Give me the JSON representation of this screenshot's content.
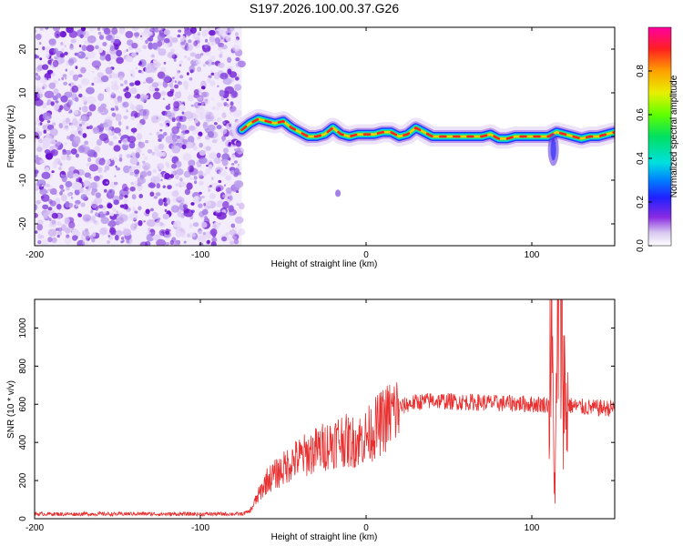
{
  "figure": {
    "title": "S197.2026.100.00.37.G26"
  },
  "chart_data": [
    {
      "type": "heatmap",
      "panel": "spectrogram",
      "xlabel": "Height of straight line (km)",
      "ylabel": "Frequency (Hz)",
      "xlim": [
        -200,
        150
      ],
      "ylim": [
        -25,
        25
      ],
      "xticks": [
        -200,
        -100,
        0,
        100
      ],
      "yticks": [
        -20,
        -10,
        0,
        10,
        20
      ],
      "colorbar": {
        "label": "Normalized spectral amplitude",
        "range": [
          0,
          1
        ],
        "ticks": [
          0.0,
          0.2,
          0.4,
          0.6,
          0.8
        ]
      },
      "noise_region_x": [
        -200,
        -75
      ],
      "signal_ridge": {
        "x": [
          -75,
          -70,
          -65,
          -60,
          -55,
          -50,
          -45,
          -40,
          -35,
          -30,
          -25,
          -20,
          -15,
          -10,
          -5,
          0,
          5,
          10,
          15,
          20,
          25,
          30,
          35,
          40,
          45,
          50,
          55,
          60,
          65,
          70,
          75,
          80,
          85,
          90,
          95,
          100,
          105,
          110,
          115,
          120,
          125,
          130,
          135,
          140,
          145,
          150
        ],
        "freq": [
          1.5,
          3,
          4,
          3.5,
          3,
          3.5,
          2,
          1,
          0,
          0,
          0.5,
          2,
          0.5,
          0,
          0.5,
          0.5,
          0.5,
          1,
          1,
          0,
          0.5,
          2,
          1,
          0,
          0,
          0,
          0,
          0,
          0,
          0,
          0.5,
          -0.5,
          -0.5,
          0,
          0,
          0,
          0,
          0,
          1,
          0.5,
          0,
          -0.5,
          0,
          0,
          0.5,
          1
        ]
      },
      "spots": [
        {
          "x": -78,
          "y": -8
        },
        {
          "x": -17,
          "y": -13
        }
      ]
    },
    {
      "type": "line",
      "panel": "snr",
      "xlabel": "Height of straight line (km)",
      "ylabel": "SNR (10 * v/v)",
      "xlim": [
        -200,
        150
      ],
      "ylim": [
        0,
        1150
      ],
      "xticks": [
        -200,
        -100,
        0,
        100
      ],
      "yticks": [
        0,
        200,
        400,
        600,
        800,
        1000
      ],
      "series": [
        {
          "name": "SNR",
          "color": "#ff2020",
          "x": [
            -200,
            -190,
            -180,
            -170,
            -160,
            -150,
            -140,
            -130,
            -120,
            -110,
            -100,
            -90,
            -80,
            -75,
            -70,
            -65,
            -60,
            -55,
            -50,
            -45,
            -40,
            -35,
            -30,
            -25,
            -20,
            -15,
            -10,
            -5,
            0,
            5,
            10,
            15,
            20,
            25,
            30,
            35,
            40,
            50,
            60,
            70,
            80,
            90,
            100,
            105,
            110,
            112,
            114,
            116,
            118,
            120,
            125,
            130,
            140,
            150
          ],
          "values": [
            25,
            25,
            24,
            25,
            25,
            24,
            26,
            25,
            24,
            25,
            24,
            25,
            25,
            24,
            40,
            120,
            200,
            230,
            260,
            300,
            320,
            340,
            360,
            380,
            400,
            420,
            400,
            410,
            430,
            470,
            510,
            550,
            580,
            600,
            610,
            615,
            620,
            615,
            612,
            610,
            605,
            605,
            600,
            600,
            600,
            900,
            120,
            1150,
            1100,
            600,
            590,
            585,
            580,
            580
          ]
        }
      ]
    }
  ],
  "colors": {
    "axis": "#000000",
    "snr_line": "#e83030",
    "noise_dots": "#7a2ad8"
  }
}
